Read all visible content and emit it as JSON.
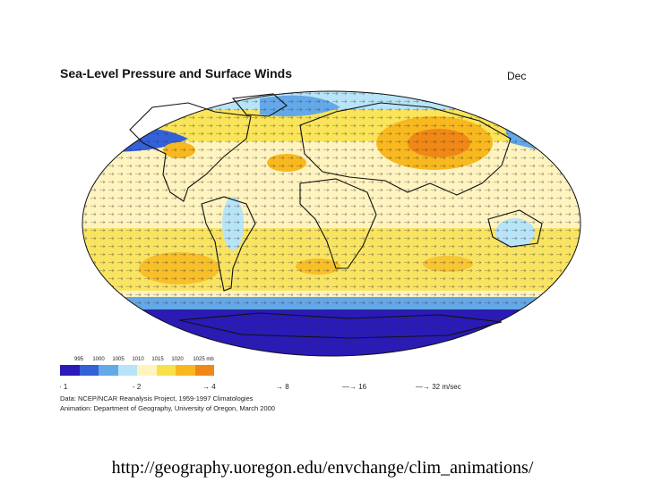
{
  "map": {
    "title": "Sea-Level Pressure and Surface Winds",
    "month": "Dec",
    "legend": {
      "labels": [
        "995",
        "1000",
        "1005",
        "1010",
        "1015",
        "1020",
        "1025 mb"
      ],
      "colors": [
        "#2a1ab8",
        "#3460d8",
        "#64a8e8",
        "#b8e4f8",
        "#fff4c0",
        "#f8e048",
        "#f8b820",
        "#f08818"
      ]
    },
    "wind_key": [
      "1",
      "2",
      "4",
      "8",
      "16",
      "32 m/sec"
    ],
    "credits": [
      "Data:  NCEP/NCAR Reanalysis Project, 1959-1997 Climatologies",
      "Animation:  Department of Geography, University of Oregon, March 2000"
    ]
  },
  "footer": {
    "url": "http://geography.uoregon.edu/envchange/clim_animations/"
  }
}
